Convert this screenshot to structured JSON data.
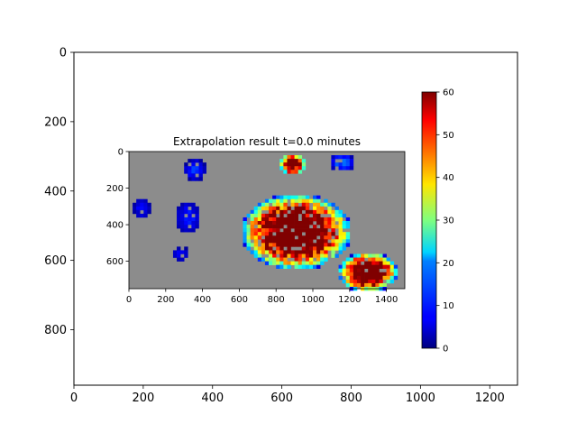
{
  "chart_data": [
    {
      "type": "heatmap",
      "panel": "outer-axes",
      "xlim": [
        0,
        1280
      ],
      "ylim": [
        960,
        0
      ],
      "x_ticks": [
        0,
        200,
        400,
        600,
        800,
        1000,
        1200
      ],
      "y_ticks": [
        0,
        200,
        400,
        600,
        800
      ]
    },
    {
      "type": "heatmap",
      "panel": "radar-image",
      "title": "Extrapolation result t=0.0 minutes",
      "xlim": [
        0,
        1500
      ],
      "ylim": [
        750,
        0
      ],
      "x_ticks": [
        0,
        200,
        400,
        600,
        800,
        1000,
        1200,
        1400
      ],
      "y_ticks": [
        0,
        200,
        400,
        600
      ],
      "background_color": "#8c8c8c",
      "colormap": "jet",
      "clusters": [
        {
          "x": 900,
          "y": 430,
          "rx": 300,
          "ry": 210,
          "peak": 60
        },
        {
          "x": 1290,
          "y": 650,
          "rx": 160,
          "ry": 110,
          "peak": 60
        },
        {
          "x": 880,
          "y": 60,
          "rx": 70,
          "ry": 60,
          "peak": 55
        },
        {
          "x": 1150,
          "y": 50,
          "rx": 70,
          "ry": 50,
          "peak": 15
        },
        {
          "x": 350,
          "y": 90,
          "rx": 60,
          "ry": 60,
          "peak": 12
        },
        {
          "x": 310,
          "y": 350,
          "rx": 70,
          "ry": 90,
          "peak": 10
        },
        {
          "x": 60,
          "y": 300,
          "rx": 50,
          "ry": 60,
          "peak": 8
        },
        {
          "x": 270,
          "y": 550,
          "rx": 50,
          "ry": 40,
          "peak": 8
        }
      ]
    },
    {
      "type": "colorbar",
      "colormap": "jet",
      "range": [
        0,
        60
      ],
      "ticks": [
        0,
        10,
        20,
        30,
        40,
        50,
        60
      ]
    }
  ],
  "colors": {
    "frame": "#000000",
    "image_background": "#8c8c8c",
    "deep_red": "#800000"
  }
}
